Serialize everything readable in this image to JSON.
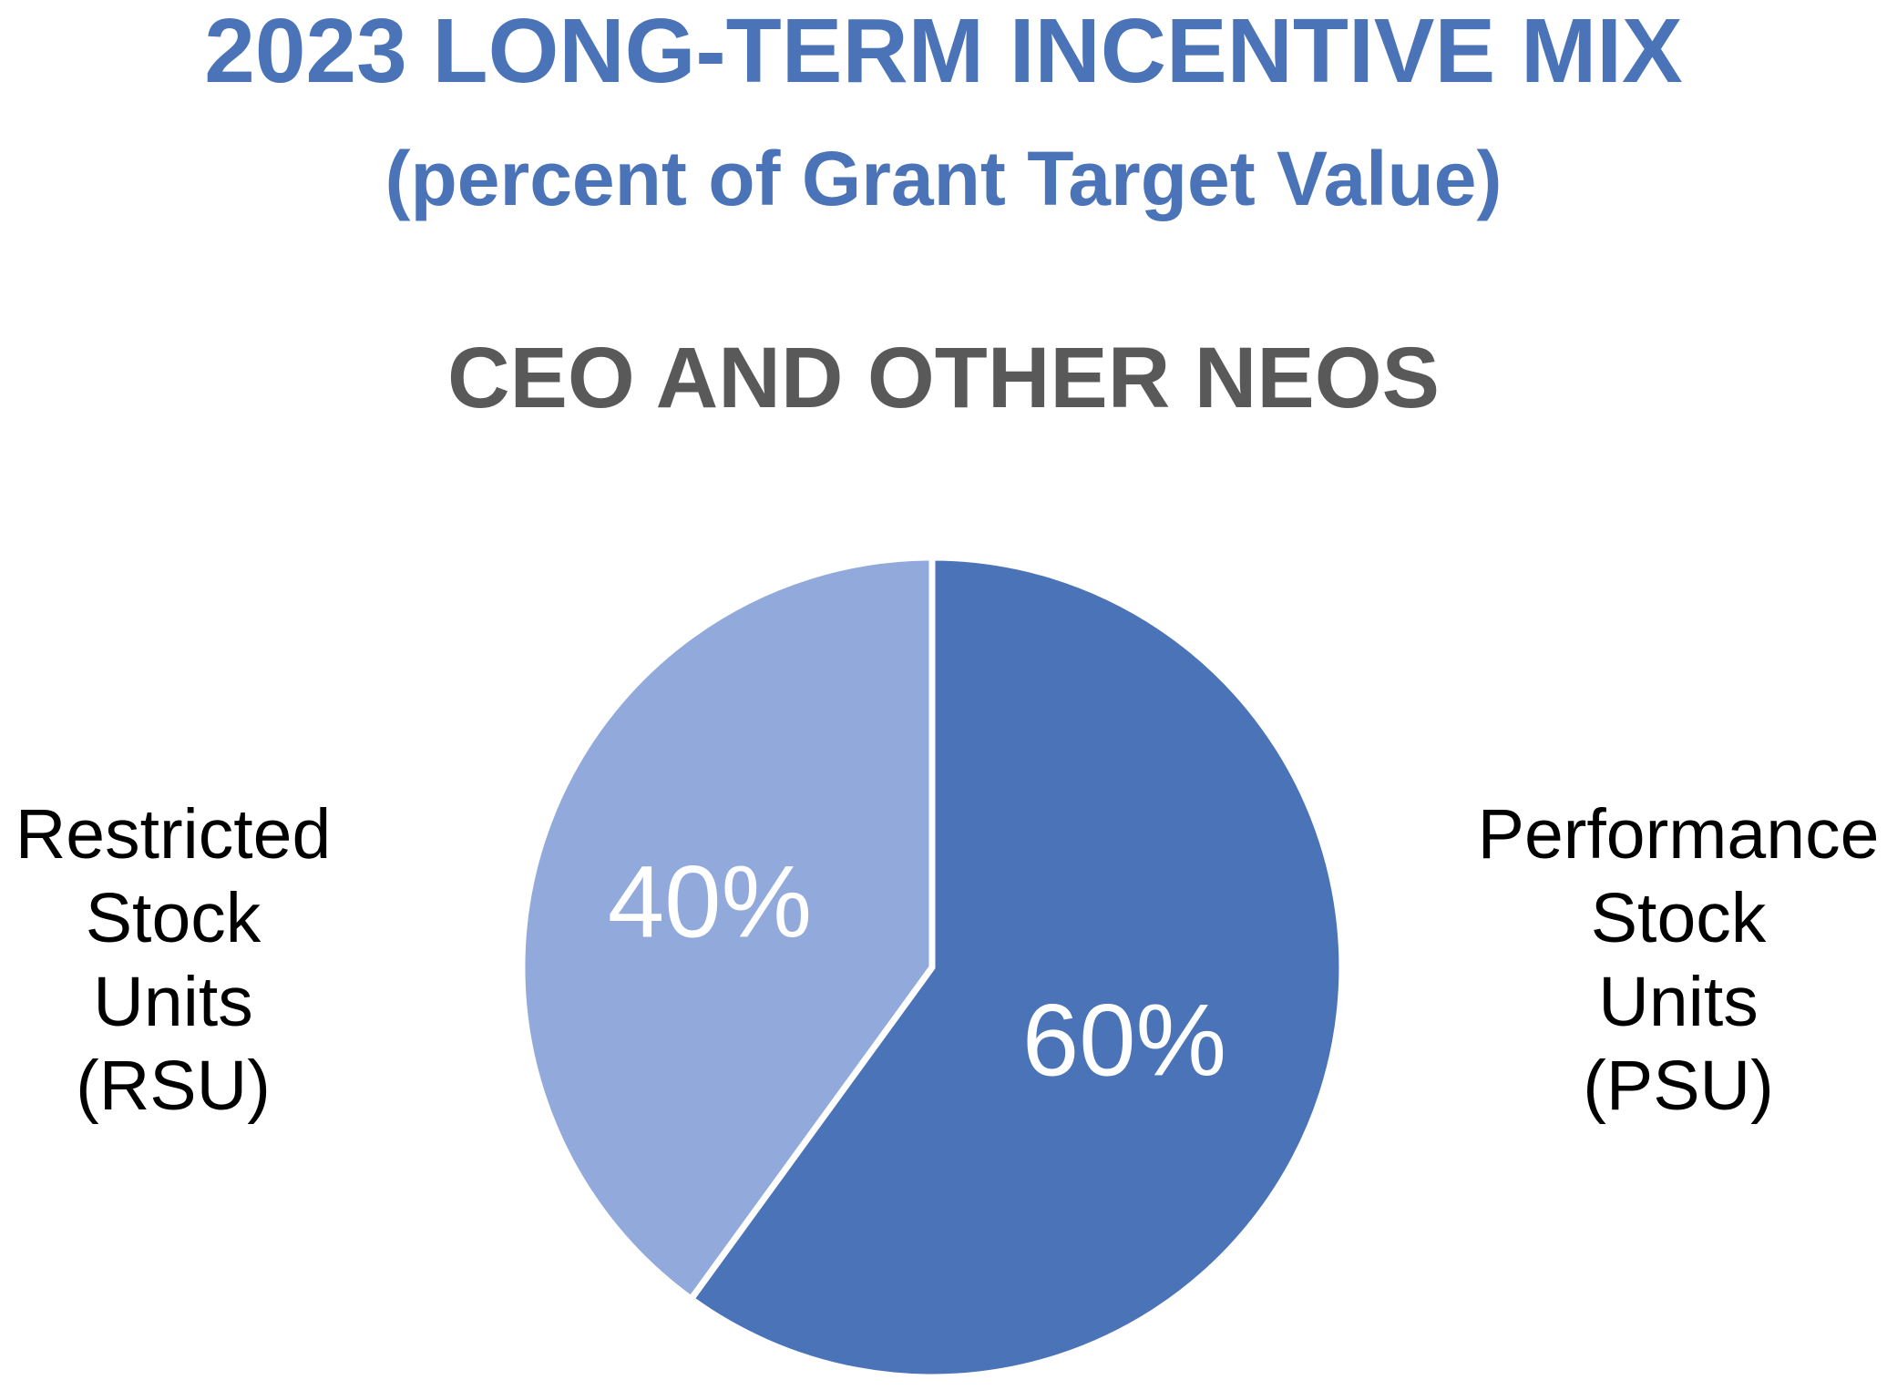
{
  "header": {
    "title_line1": "2023 LONG-TERM INCENTIVE MIX",
    "title_line2": "(percent of Grant Target Value)",
    "title_color": "#4A73B8"
  },
  "chart_data": {
    "type": "pie",
    "title": "CEO AND OTHER NEOS",
    "title_color": "#595959",
    "categories": [
      "Performance Stock Units (PSU)",
      "Restricted Stock Units (RSU)"
    ],
    "values": [
      60,
      40
    ],
    "slice_labels": [
      "60%",
      "40%"
    ],
    "colors": [
      "#4A73B8",
      "#92A9DB"
    ],
    "data_label_color": "#FFFFFF",
    "divider_color": "#FFFFFF",
    "start_angle_deg": 0,
    "direction": "clockwise",
    "legend_position": "sides"
  },
  "side_labels": {
    "left": "Restricted\nStock\nUnits\n(RSU)",
    "right": "Performance\nStock\nUnits\n(PSU)"
  }
}
